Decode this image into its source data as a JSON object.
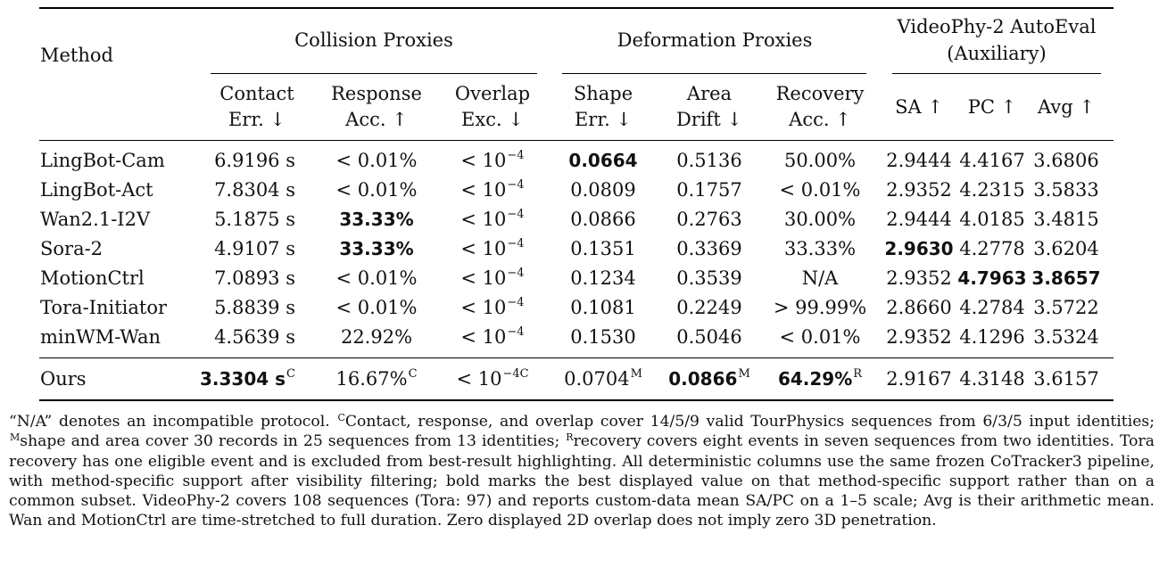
{
  "header": {
    "method": "Method",
    "collision_group": "Collision Proxies",
    "deformation_group": "Deformation Proxies",
    "videophy_group_line1": "VideoPhy-2 AutoEval",
    "videophy_group_line2": "(Auxiliary)",
    "col_contact": [
      "Contact",
      "Err. ↓"
    ],
    "col_response": [
      "Response",
      "Acc. ↑"
    ],
    "col_overlap": [
      "Overlap",
      "Exc. ↓"
    ],
    "col_shape": [
      "Shape",
      "Err. ↓"
    ],
    "col_area": [
      "Area",
      "Drift ↓"
    ],
    "col_recovery": [
      "Recovery",
      "Acc. ↑"
    ],
    "col_sa": "SA ↑",
    "col_pc": "PC ↑",
    "col_avg": "Avg ↑"
  },
  "rows": [
    {
      "method": "LingBot-Cam",
      "contact": "6.9196 s",
      "response": "< 0.01%",
      "overlap_base": "< 10",
      "overlap_exp": "−4",
      "shape": "0.0664",
      "area": "0.5136",
      "recovery": "50.00%",
      "sa": "2.9444",
      "pc": "4.4167",
      "avg": "3.6806"
    },
    {
      "method": "LingBot-Act",
      "contact": "7.8304 s",
      "response": "< 0.01%",
      "overlap_base": "< 10",
      "overlap_exp": "−4",
      "shape": "0.0809",
      "area": "0.1757",
      "recovery": "< 0.01%",
      "sa": "2.9352",
      "pc": "4.2315",
      "avg": "3.5833"
    },
    {
      "method": "Wan2.1-I2V",
      "contact": "5.1875 s",
      "response": "33.33%",
      "overlap_base": "< 10",
      "overlap_exp": "−4",
      "shape": "0.0866",
      "area": "0.2763",
      "recovery": "30.00%",
      "sa": "2.9444",
      "pc": "4.0185",
      "avg": "3.4815"
    },
    {
      "method": "Sora-2",
      "contact": "4.9107 s",
      "response": "33.33%",
      "overlap_base": "< 10",
      "overlap_exp": "−4",
      "shape": "0.1351",
      "area": "0.3369",
      "recovery": "33.33%",
      "sa": "2.9630",
      "pc": "4.2778",
      "avg": "3.6204"
    },
    {
      "method": "MotionCtrl",
      "contact": "7.0893 s",
      "response": "< 0.01%",
      "overlap_base": "< 10",
      "overlap_exp": "−4",
      "shape": "0.1234",
      "area": "0.3539",
      "recovery": "N/A",
      "sa": "2.9352",
      "pc": "4.7963",
      "avg": "3.8657"
    },
    {
      "method": "Tora-Initiator",
      "contact": "5.8839 s",
      "response": "< 0.01%",
      "overlap_base": "< 10",
      "overlap_exp": "−4",
      "shape": "0.1081",
      "area": "0.2249",
      "recovery": "> 99.99%",
      "sa": "2.8660",
      "pc": "4.2784",
      "avg": "3.5722"
    },
    {
      "method": "minWM-Wan",
      "contact": "4.5639 s",
      "response": "22.92%",
      "overlap_base": "< 10",
      "overlap_exp": "−4",
      "shape": "0.1530",
      "area": "0.5046",
      "recovery": "< 0.01%",
      "sa": "2.9352",
      "pc": "4.1296",
      "avg": "3.5324"
    }
  ],
  "ours": {
    "method": "Ours",
    "contact": "3.3304 s",
    "contact_sup": "C",
    "response": "16.67%",
    "response_sup": "C",
    "overlap_base": "< 10",
    "overlap_exp": "−4",
    "overlap_sup": "C",
    "shape": "0.0704",
    "shape_sup": "M",
    "area": "0.0866",
    "area_sup": "M",
    "recovery": "64.29%",
    "recovery_sup": "R",
    "sa": "2.9167",
    "pc": "4.3148",
    "avg": "3.6157"
  },
  "bold_cells": [
    "LingBot-Cam.shape",
    "Wan2.1-I2V.response",
    "Sora-2.response",
    "Sora-2.sa",
    "MotionCtrl.pc",
    "MotionCtrl.avg",
    "Ours.contact",
    "Ours.area",
    "Ours.recovery"
  ],
  "notes": {
    "p1": "“N/A” denotes an incompatible protocol. ",
    "s_c": "C",
    "p2": "Contact, response, and overlap cover 14/5/9 valid TourPhysics sequences from 6/3/5 input identities; ",
    "s_m": "M",
    "p3": "shape and area cover 30 records in 25 sequences from 13 identities; ",
    "s_r": "R",
    "p4": "recovery covers eight events in seven sequences from two identities. Tora recovery has one eligible event and is excluded from best-result highlighting. All deterministic columns use the same frozen CoTracker3 pipeline, with method-specific support after visibility filtering; bold marks the best displayed value on that method-specific support rather than on a common subset. VideoPhy-2 covers 108 sequences (Tora: 97) and reports custom-data mean SA/PC on a 1–5 scale; Avg is their arithmetic mean. Wan and MotionCtrl are time-stretched to full duration. Zero displayed 2D overlap does not imply zero 3D penetration."
  }
}
